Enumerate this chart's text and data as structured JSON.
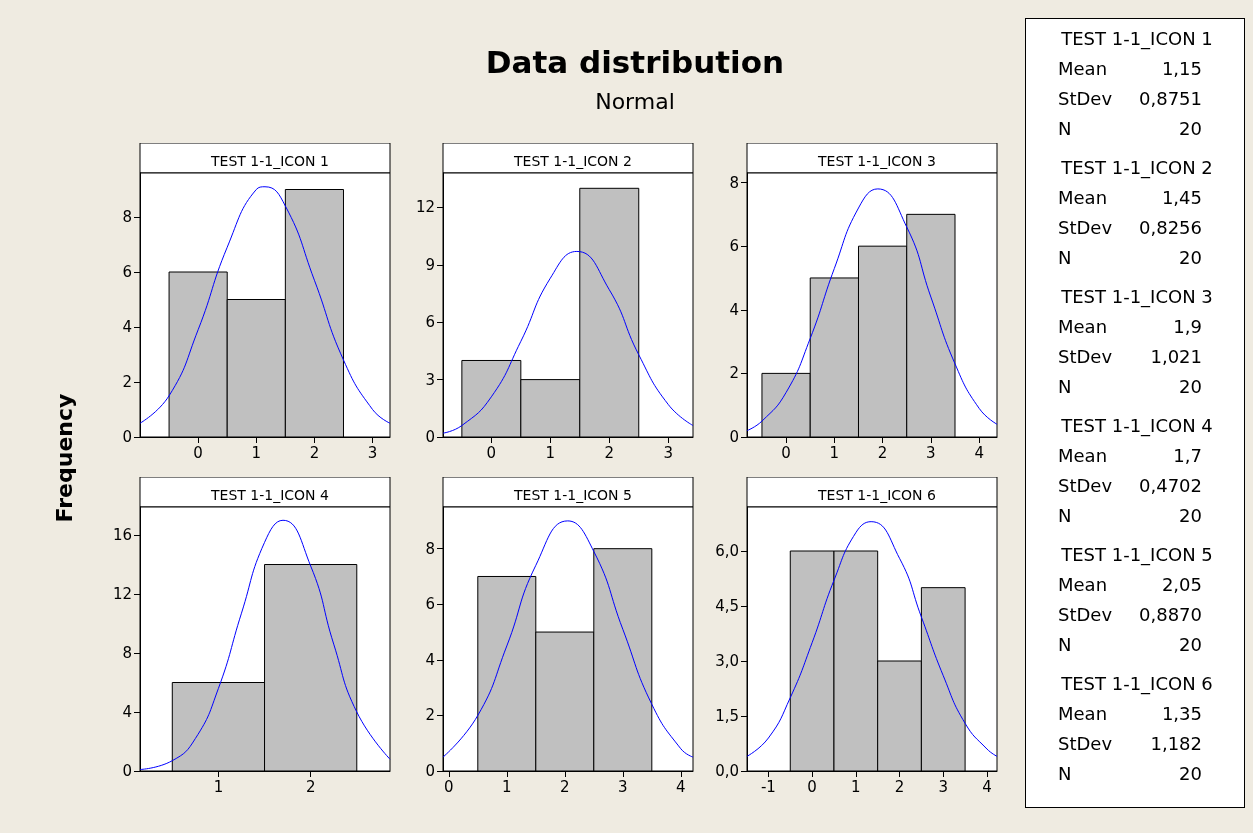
{
  "chart_data": [
    {
      "type": "other",
      "title": "Data distribution",
      "subtitle": "Normal",
      "annotations": [
        "TEST 1-1_ICON 1",
        "Mean",
        "1,15",
        "StDev",
        "0,8751",
        "N",
        "20",
        "TEST 1-1_ICON 2",
        "Mean",
        "1,45",
        "StDev",
        "0,8256",
        "N",
        "20",
        "TEST 1-1_ICON 3",
        "Mean",
        "1,9",
        "StDev",
        "1,021",
        "N",
        "20",
        "TEST 1-1_ICON 4",
        "Mean",
        "1,7",
        "StDev",
        "0,4702",
        "N",
        "20",
        "TEST 1-1_ICON 5",
        "Mean",
        "2,05",
        "StDev",
        "0,8870",
        "N",
        "20",
        "TEST 1-1_ICON 6",
        "Mean",
        "1,35",
        "StDev",
        "1,182",
        "N",
        "20"
      ]
    },
    {
      "type": "histogram",
      "title": "TEST 1-1_ICON 1",
      "ylabel": "Frequency",
      "bins": [
        -0.5,
        0.5,
        1.5,
        2.5
      ],
      "values": [
        6,
        5,
        9
      ],
      "color": "#c0c0c0",
      "xlim": [
        -1,
        3.3
      ],
      "xticks": [
        0,
        1,
        2,
        3
      ],
      "ylim": [
        0,
        9.6
      ],
      "yticks": [
        0,
        2,
        4,
        6,
        8
      ],
      "grid": false,
      "series": [
        {
          "type": "line",
          "color": "#0000ff",
          "x": [
            -1,
            -0.5,
            0,
            0.5,
            1,
            1.15,
            1.5,
            2,
            2.5,
            3,
            3.3
          ],
          "values": [
            0.5,
            1.5,
            3.9,
            6.9,
            9,
            9.1,
            8.4,
            5.7,
            2.8,
            1,
            0.5
          ]
        }
      ]
    },
    {
      "type": "histogram",
      "title": "TEST 1-1_ICON 2",
      "bins": [
        -0.5,
        0.5,
        1.5,
        2.5
      ],
      "values": [
        4,
        3,
        13
      ],
      "color": "#c0c0c0",
      "xlim": [
        -0.82,
        3.42
      ],
      "xticks": [
        0,
        1,
        2,
        3
      ],
      "ylim": [
        0,
        13.8
      ],
      "yticks": [
        0,
        3,
        6,
        9,
        12
      ],
      "grid": false,
      "series": [
        {
          "type": "line",
          "color": "#0000ff",
          "x": [
            -0.82,
            -0.5,
            0,
            0.5,
            1,
            1.45,
            2,
            2.5,
            3,
            3.42
          ],
          "values": [
            0.2,
            0.6,
            2.1,
            5,
            8.3,
            9.7,
            7.7,
            4.3,
            1.7,
            0.6
          ]
        }
      ]
    },
    {
      "type": "histogram",
      "title": "TEST 1-1_ICON 3",
      "bins": [
        -0.5,
        0.5,
        1.5,
        2.5,
        3.5
      ],
      "values": [
        2,
        5,
        6,
        7
      ],
      "color": "#c0c0c0",
      "xlim": [
        -0.81,
        4.37
      ],
      "xticks": [
        0,
        1,
        2,
        3,
        4
      ],
      "ylim": [
        0,
        8.3
      ],
      "yticks": [
        0,
        2,
        4,
        6,
        8
      ],
      "grid": false,
      "series": [
        {
          "type": "line",
          "color": "#0000ff",
          "x": [
            -0.81,
            -0.5,
            0,
            0.5,
            1,
            1.5,
            1.9,
            2.5,
            3,
            3.5,
            4,
            4.37
          ],
          "values": [
            0.2,
            0.5,
            1.4,
            3.1,
            5.3,
            7.2,
            7.8,
            6.6,
            4.4,
            2.3,
            0.9,
            0.4
          ]
        }
      ]
    },
    {
      "type": "histogram",
      "title": "TEST 1-1_ICON 4",
      "bins": [
        0.5,
        1.5,
        2.5
      ],
      "values": [
        6,
        14
      ],
      "color": "#c0c0c0",
      "xlim": [
        0.15,
        2.86
      ],
      "xticks": [
        1,
        2
      ],
      "ylim": [
        0,
        17.9
      ],
      "yticks": [
        0,
        4,
        8,
        12,
        16
      ],
      "grid": false,
      "series": [
        {
          "type": "line",
          "color": "#0000ff",
          "x": [
            0.15,
            0.5,
            0.75,
            1,
            1.25,
            1.5,
            1.7,
            2,
            2.25,
            2.5,
            2.86
          ],
          "values": [
            0.1,
            0.7,
            2.2,
            5.6,
            10.7,
            15.5,
            17,
            13.9,
            8.6,
            4,
            0.8
          ]
        }
      ]
    },
    {
      "type": "histogram",
      "title": "TEST 1-1_ICON 5",
      "bins": [
        0.5,
        1.5,
        2.5,
        3.5
      ],
      "values": [
        7,
        5,
        8
      ],
      "color": "#c0c0c0",
      "xlim": [
        -0.1,
        4.21
      ],
      "xticks": [
        0,
        1,
        2,
        3,
        4
      ],
      "ylim": [
        0,
        9.5
      ],
      "yticks": [
        0,
        2,
        4,
        6,
        8
      ],
      "grid": false,
      "series": [
        {
          "type": "line",
          "color": "#0000ff",
          "x": [
            -0.1,
            0.5,
            1,
            1.5,
            2.05,
            2.5,
            3,
            3.5,
            4,
            4.21
          ],
          "values": [
            0.5,
            2,
            4.5,
            7.4,
            9,
            7.9,
            5.1,
            2.4,
            0.8,
            0.5
          ]
        }
      ]
    },
    {
      "type": "histogram",
      "title": "TEST 1-1_ICON 6",
      "bins": [
        -0.5,
        0.5,
        1.5,
        2.5,
        3.5
      ],
      "values": [
        6,
        6,
        3,
        5
      ],
      "color": "#c0c0c0",
      "xlim": [
        -1.49,
        4.23
      ],
      "xticks": [
        -1,
        0,
        1,
        2,
        3,
        4
      ],
      "ylim": [
        0,
        7.2
      ],
      "yticks": [
        {
          "value": 0,
          "label": "0,0"
        },
        {
          "value": 1.5,
          "label": "1,5"
        },
        {
          "value": 3,
          "label": "3,0"
        },
        {
          "value": 4.5,
          "label": "4,5"
        },
        {
          "value": 6,
          "label": "6,0"
        }
      ],
      "grid": false,
      "series": [
        {
          "type": "line",
          "color": "#0000ff",
          "x": [
            -1.49,
            -1,
            -0.5,
            0,
            0.5,
            1,
            1.35,
            2,
            2.5,
            3,
            3.5,
            4,
            4.23
          ],
          "values": [
            0.4,
            0.9,
            2,
            3.5,
            5.2,
            6.5,
            6.8,
            5.8,
            4.2,
            2.6,
            1.3,
            0.6,
            0.4
          ]
        }
      ]
    }
  ]
}
